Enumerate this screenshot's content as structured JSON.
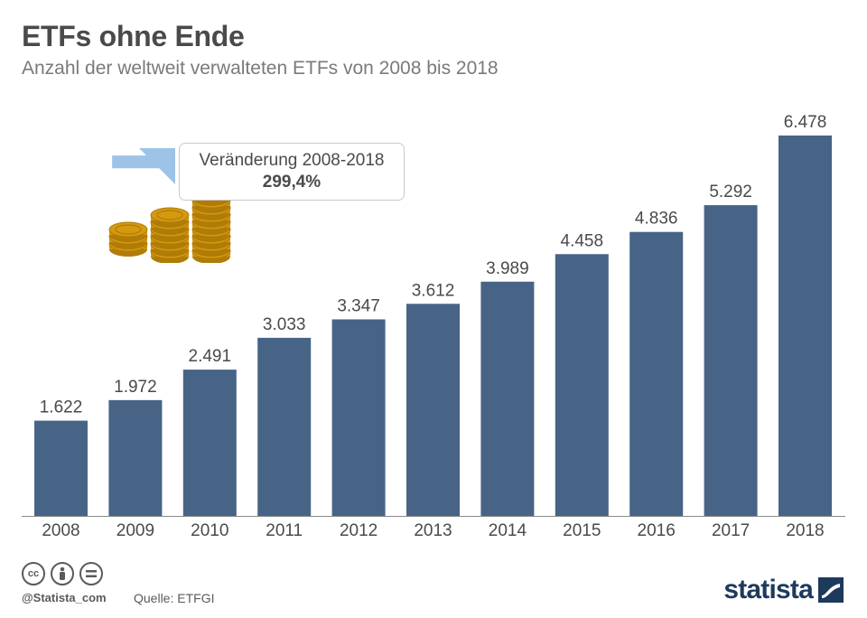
{
  "header": {
    "title": "ETFs ohne Ende",
    "subtitle": "Anzahl der weltweit verwalteten ETFs von 2008 bis 2018"
  },
  "callout": {
    "label": "Veränderung 2008-2018",
    "value": "299,4%"
  },
  "footer": {
    "handle": "@Statista_com",
    "source": "Quelle: ETFGI",
    "brand": "statista",
    "license_icons": [
      "cc-icon",
      "attribution-icon",
      "no-derivatives-icon"
    ]
  },
  "colors": {
    "bar": "#476487",
    "text": "#4a4a4a",
    "arrow": "#9dc3e6",
    "coin": "#d4990f",
    "coin_dark": "#b07c07",
    "brand": "#1d3a5c"
  },
  "chart_data": {
    "type": "bar",
    "title": "ETFs ohne Ende",
    "subtitle": "Anzahl der weltweit verwalteten ETFs von 2008 bis 2018",
    "categories": [
      "2008",
      "2009",
      "2010",
      "2011",
      "2012",
      "2013",
      "2014",
      "2015",
      "2016",
      "2017",
      "2018"
    ],
    "values": [
      1622,
      1972,
      2491,
      3033,
      3347,
      3612,
      3989,
      4458,
      4836,
      5292,
      6478
    ],
    "value_labels": [
      "1.622",
      "1.972",
      "2.491",
      "3.033",
      "3.347",
      "3.612",
      "3.989",
      "4.458",
      "4.836",
      "5.292",
      "6.478"
    ],
    "xlabel": "",
    "ylabel": "",
    "ylim": [
      0,
      6478
    ],
    "grid": false,
    "legend": "none"
  }
}
